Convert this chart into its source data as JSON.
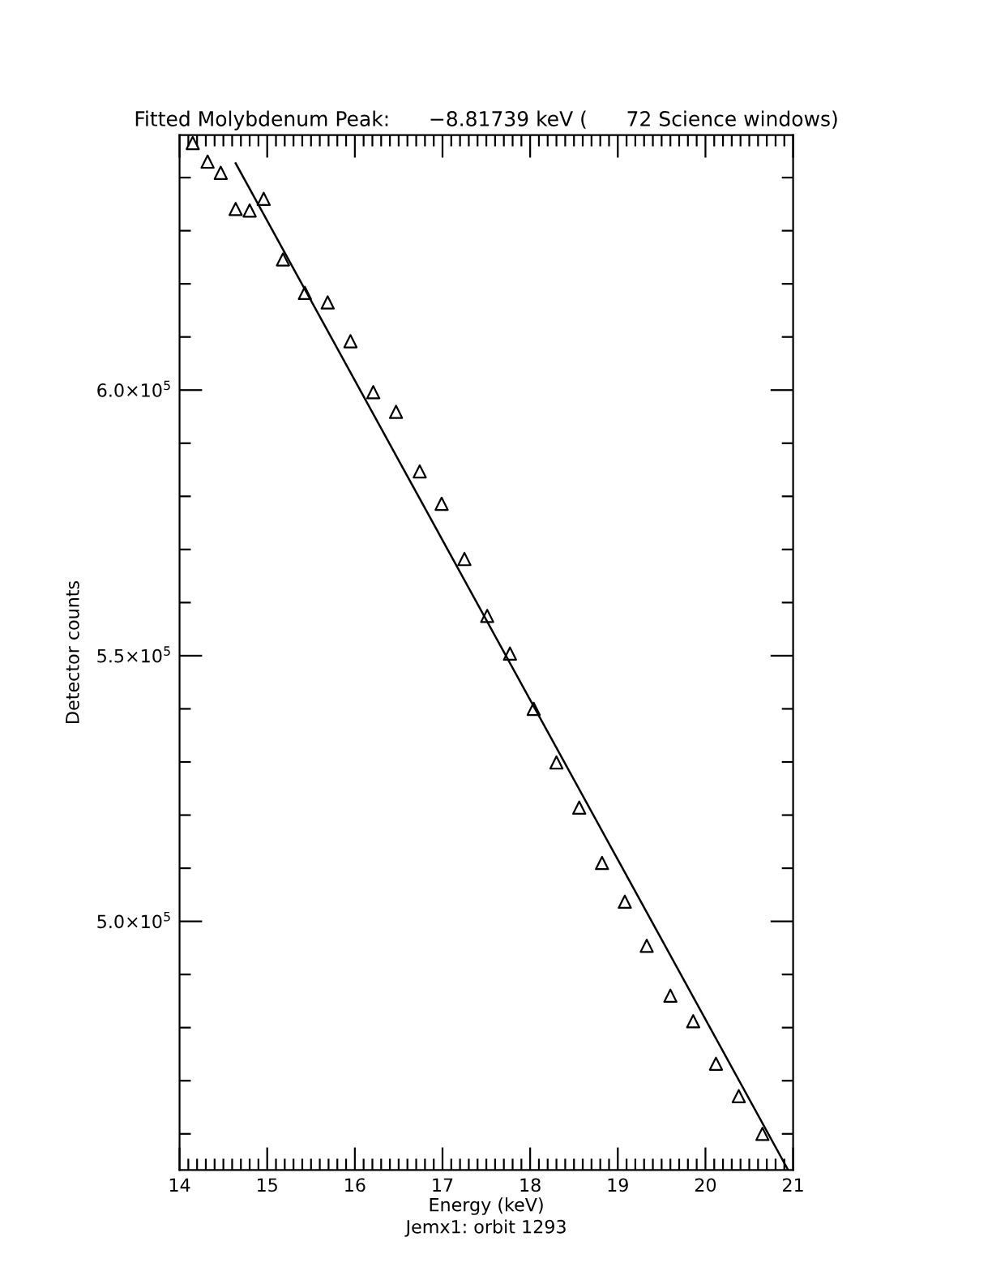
{
  "chart_data": {
    "type": "scatter",
    "title": "Fitted Molybdenum Peak:      −8.81739 keV (      72 Science windows)",
    "xlabel": "Energy (keV)",
    "ylabel": "Detector counts",
    "annotations": [
      "Jemx1: orbit 1293"
    ],
    "xlim": [
      14,
      21
    ],
    "xticks": [
      14,
      15,
      16,
      17,
      18,
      19,
      20,
      21
    ],
    "ylim": [
      453200,
      648000
    ],
    "yticks": [
      {
        "value": 500000,
        "label": "5.0×10$^{5}$"
      },
      {
        "value": 550000,
        "label": "5.5×10$^{5}$"
      },
      {
        "value": 600000,
        "label": "6.0×10$^{5}$"
      }
    ],
    "grid": false,
    "legend": false,
    "series": [
      {
        "marker": "triangle",
        "color": "#000000",
        "x": [
          14.15,
          14.32,
          14.47,
          14.64,
          14.8,
          14.96,
          15.18,
          15.43,
          15.69,
          15.95,
          16.21,
          16.47,
          16.74,
          16.99,
          17.25,
          17.51,
          17.77,
          18.04,
          18.3,
          18.56,
          18.82,
          19.08,
          19.33,
          19.6,
          19.86,
          20.12,
          20.38,
          20.65
        ],
        "values": [
          646500,
          643000,
          640900,
          634100,
          633800,
          636000,
          624600,
          618300,
          616500,
          609200,
          599600,
          595900,
          584700,
          578600,
          568200,
          557500,
          550400,
          540000,
          529900,
          521400,
          511000,
          503700,
          495400,
          486000,
          481200,
          473200,
          467100,
          460000
        ]
      },
      {
        "type": "line",
        "marker": "none",
        "line_style": "solid",
        "color": "#000000",
        "x": [
          14.64,
          20.94
        ],
        "values": [
          642700,
          453300
        ]
      }
    ]
  }
}
